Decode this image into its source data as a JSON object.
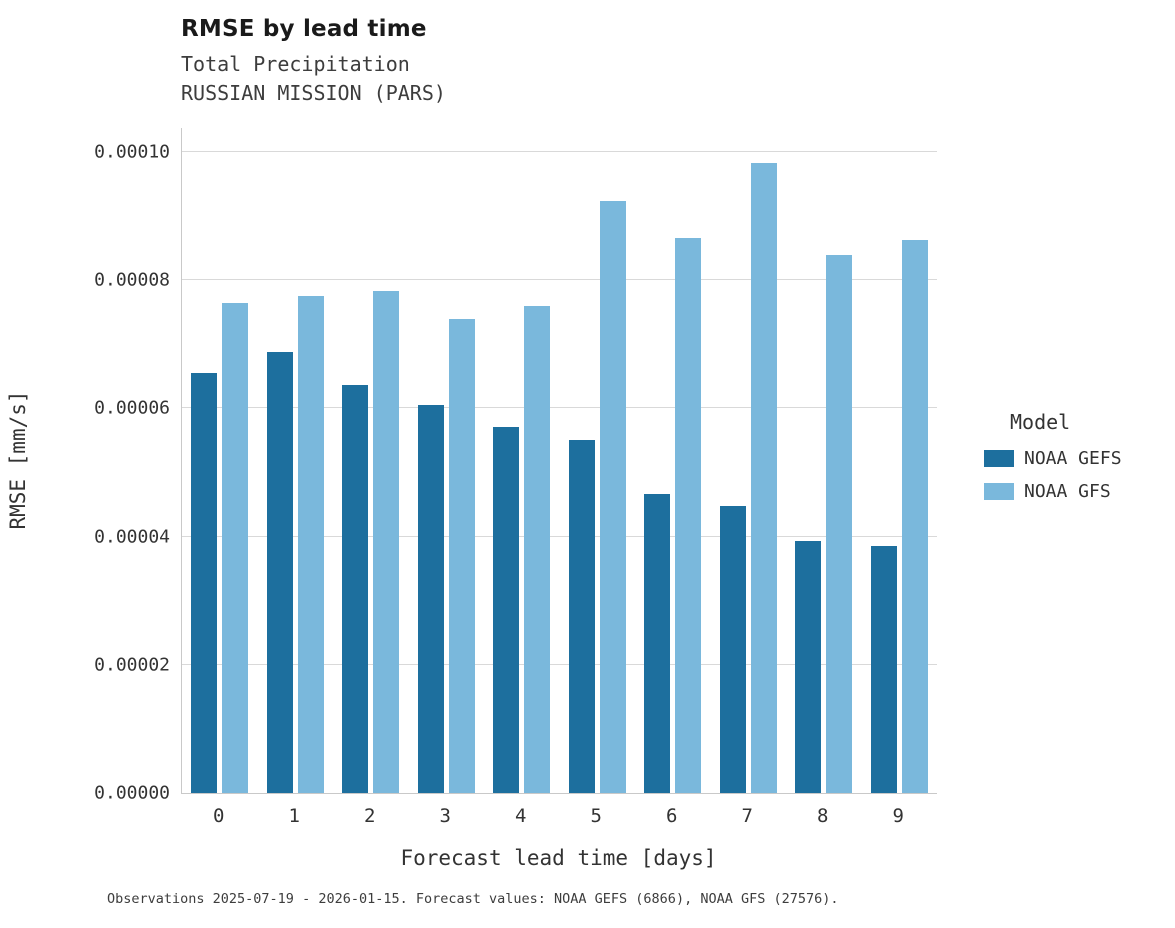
{
  "header": {
    "title": "RMSE by lead time",
    "subtitle1": "Total Precipitation",
    "subtitle2": "RUSSIAN MISSION (PARS)"
  },
  "legend": {
    "title": "Model",
    "entries": [
      {
        "label": "NOAA GEFS",
        "color": "#1d6f9e"
      },
      {
        "label": "NOAA GFS",
        "color": "#7ab8dc"
      }
    ]
  },
  "caption": "Observations 2025-07-19 - 2026-01-15. Forecast values: NOAA GEFS (6866), NOAA GFS (27576).",
  "chart_data": {
    "type": "bar",
    "title": "RMSE by lead time",
    "subtitle": "Total Precipitation — RUSSIAN MISSION (PARS)",
    "xlabel": "Forecast lead time [days]",
    "ylabel": "RMSE [mm/s]",
    "categories": [
      "0",
      "1",
      "2",
      "3",
      "4",
      "5",
      "6",
      "7",
      "8",
      "9"
    ],
    "series": [
      {
        "name": "NOAA GEFS",
        "color": "#1d6f9e",
        "values": [
          6.55e-05,
          6.88e-05,
          6.37e-05,
          6.05e-05,
          5.71e-05,
          5.5e-05,
          4.67e-05,
          4.48e-05,
          3.93e-05,
          3.85e-05
        ]
      },
      {
        "name": "NOAA GFS",
        "color": "#7ab8dc",
        "values": [
          7.65e-05,
          7.76e-05,
          7.83e-05,
          7.39e-05,
          7.6e-05,
          9.24e-05,
          8.66e-05,
          9.83e-05,
          8.4e-05,
          8.63e-05
        ]
      }
    ],
    "ylim": [
      0,
      0.00010374
    ],
    "yticks": [
      0.0,
      2e-05,
      4e-05,
      6e-05,
      8e-05,
      0.0001
    ],
    "ytick_labels": [
      "0.00000",
      "0.00002",
      "0.00004",
      "0.00006",
      "0.00008",
      "0.00010"
    ],
    "grid": "horizontal",
    "legend_position": "right"
  }
}
